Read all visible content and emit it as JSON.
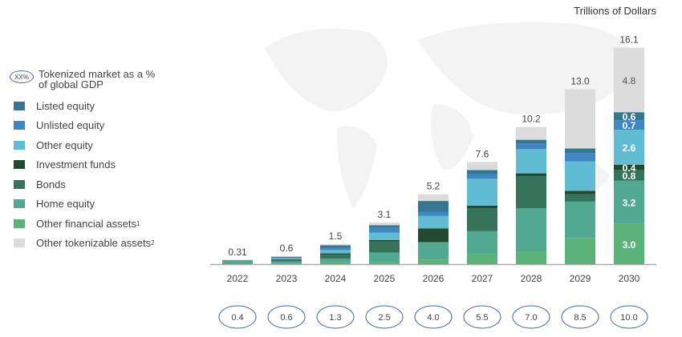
{
  "chart_data": {
    "type": "bar",
    "stacked": true,
    "unit_label": "Trillions of Dollars",
    "categories": [
      "2022",
      "2023",
      "2024",
      "2025",
      "2026",
      "2027",
      "2028",
      "2029",
      "2030"
    ],
    "totals": [
      "0.31",
      "0.6",
      "1.5",
      "3.1",
      "5.2",
      "7.6",
      "10.2",
      "13.0",
      "16.1"
    ],
    "gdp_legend_label": "Tokenized market as a % of global GDP",
    "gdp_legend_symbol": "XX%",
    "gdp_percent": [
      "0.4",
      "0.6",
      "1.3",
      "2.5",
      "4.0",
      "5.5",
      "7.0",
      "8.5",
      "10.0"
    ],
    "ylim": [
      0,
      16.5
    ],
    "grid": false,
    "legend_placement": "left",
    "series": [
      {
        "name": "Other financial assets",
        "footnote": "1",
        "color": "#5bb37a",
        "values": [
          0.03,
          0.05,
          0.15,
          0.15,
          0.35,
          0.75,
          0.95,
          1.95,
          3.0
        ]
      },
      {
        "name": "Home equity",
        "color": "#52a992",
        "values": [
          0.28,
          0.15,
          0.25,
          0.7,
          1.25,
          1.7,
          3.2,
          2.7,
          3.2
        ]
      },
      {
        "name": "Bonds",
        "color": "#35745a",
        "values": [
          0,
          0.1,
          0.3,
          0.85,
          0.05,
          1.7,
          2.4,
          0.55,
          0.8
        ]
      },
      {
        "name": "Investment funds",
        "color": "#214a2e",
        "values": [
          0,
          0.05,
          0.1,
          0.1,
          1.0,
          0.2,
          0.2,
          0.25,
          0.4
        ]
      },
      {
        "name": "Other equity",
        "color": "#5fbcd3",
        "values": [
          0,
          0.08,
          0.25,
          0.55,
          0.95,
          2.0,
          1.8,
          2.2,
          2.6
        ]
      },
      {
        "name": "Unlisted equity",
        "color": "#3f86c4",
        "values": [
          0,
          0.07,
          0.2,
          0.35,
          0.3,
          0.35,
          0.4,
          0.6,
          0.7
        ]
      },
      {
        "name": "Listed equity",
        "color": "#357790",
        "values": [
          0,
          0.05,
          0.15,
          0.2,
          0.8,
          0.3,
          0.3,
          0.35,
          0.6
        ]
      },
      {
        "name": "Other tokenizable assets",
        "footnote": "2",
        "color": "#dcdcdc",
        "values": [
          0,
          0.05,
          0.1,
          0.2,
          0.5,
          0.6,
          0.95,
          4.4,
          4.8
        ]
      }
    ],
    "segment_labels_2030": [
      "3.0",
      "3.2",
      "0.8",
      "0.4",
      "2.6",
      "0.7",
      "0.6",
      "4.8"
    ],
    "legend_order": [
      "Listed equity",
      "Unlisted equity",
      "Other equity",
      "Investment funds",
      "Bonds",
      "Home equity",
      "Other financial assets",
      "Other tokenizable assets"
    ]
  }
}
